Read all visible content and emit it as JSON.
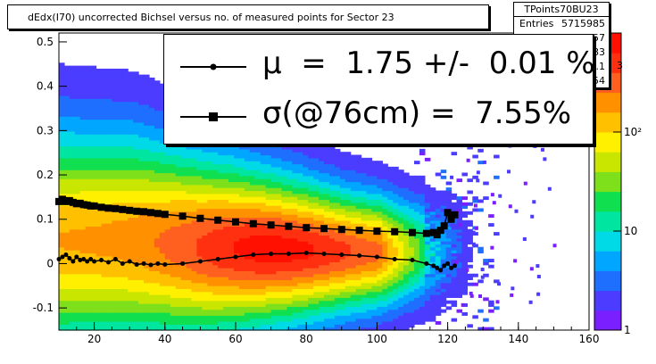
{
  "title": "dEdx(I70) uncorrected Bichsel versus no. of measured points for Sector 23",
  "stats": {
    "name": "TPoints70BU23",
    "rows": [
      {
        "key": "Entries",
        "value": "5715985"
      },
      {
        "key": "M",
        "value": "47.57"
      },
      {
        "key": "",
        "value": "0.05983"
      },
      {
        "key": "",
        "value": "25.1"
      },
      {
        "key": "",
        "value": "0.1354"
      }
    ],
    "extra_digit": "3"
  },
  "legend": [
    {
      "text": "μ  =  1.75 +/-  0.01 %",
      "marker": "circle"
    },
    {
      "text": "σ(@76cm) =  7.55%",
      "marker": "square"
    }
  ],
  "chart_data": {
    "type": "heatmap",
    "title": "dEdx(I70) uncorrected Bichsel versus no. of measured points for Sector 23",
    "xlim": [
      10,
      160
    ],
    "ylim": [
      -0.15,
      0.52
    ],
    "x_ticks": [
      20,
      40,
      60,
      80,
      100,
      120,
      140,
      160
    ],
    "y_ticks": [
      -0.1,
      0,
      0.1,
      0.2,
      0.3,
      0.4,
      0.5
    ],
    "color_scale": "log",
    "colorbar_ticks": [
      "1",
      "10",
      "10²"
    ],
    "colorbar_values": [
      1,
      10,
      100
    ],
    "colorbar_range": [
      1,
      1000
    ],
    "density_band": [
      {
        "x": 10,
        "center": 0.05,
        "width": 0.22
      },
      {
        "x": 30,
        "center": 0.05,
        "width": 0.21
      },
      {
        "x": 50,
        "center": 0.035,
        "width": 0.18
      },
      {
        "x": 70,
        "center": 0.03,
        "width": 0.15
      },
      {
        "x": 90,
        "center": 0.025,
        "width": 0.12
      },
      {
        "x": 110,
        "center": 0.025,
        "width": 0.1
      },
      {
        "x": 120,
        "center": 0.03,
        "width": 0.1
      }
    ],
    "series": [
      {
        "name": "μ",
        "marker": "circle",
        "color": "#000000",
        "x": [
          10,
          11,
          12,
          13,
          14,
          15,
          16,
          17,
          18,
          19,
          20,
          22,
          24,
          26,
          28,
          30,
          32,
          34,
          36,
          38,
          40,
          45,
          50,
          55,
          60,
          65,
          70,
          75,
          80,
          85,
          90,
          95,
          100,
          105,
          110,
          114,
          116,
          117,
          118,
          119,
          120,
          121,
          122
        ],
        "y": [
          0.01,
          0.015,
          0.02,
          0.012,
          0.005,
          0.015,
          0.008,
          0.01,
          0.005,
          0.01,
          0.005,
          0.008,
          0.003,
          0.01,
          0.0,
          0.005,
          -0.002,
          0.0,
          -0.003,
          0.0,
          -0.002,
          0.0,
          0.005,
          0.01,
          0.015,
          0.02,
          0.022,
          0.022,
          0.024,
          0.022,
          0.02,
          0.018,
          0.015,
          0.01,
          0.008,
          0.0,
          -0.005,
          -0.01,
          -0.015,
          -0.005,
          0.0,
          -0.01,
          -0.005
        ]
      },
      {
        "name": "σ",
        "marker": "square",
        "color": "#000000",
        "x": [
          10,
          11,
          12,
          13,
          14,
          15,
          16,
          17,
          18,
          19,
          20,
          22,
          24,
          26,
          28,
          30,
          32,
          34,
          36,
          38,
          40,
          45,
          50,
          55,
          60,
          65,
          70,
          75,
          80,
          85,
          90,
          95,
          100,
          105,
          110,
          114,
          116,
          117,
          118,
          119,
          120,
          121,
          122
        ],
        "y": [
          0.14,
          0.145,
          0.14,
          0.142,
          0.138,
          0.135,
          0.136,
          0.133,
          0.132,
          0.13,
          0.13,
          0.127,
          0.125,
          0.124,
          0.122,
          0.12,
          0.118,
          0.117,
          0.115,
          0.113,
          0.111,
          0.107,
          0.102,
          0.098,
          0.094,
          0.09,
          0.087,
          0.084,
          0.081,
          0.079,
          0.077,
          0.075,
          0.073,
          0.072,
          0.07,
          0.068,
          0.07,
          0.065,
          0.075,
          0.085,
          0.115,
          0.1,
          0.11
        ]
      }
    ]
  }
}
